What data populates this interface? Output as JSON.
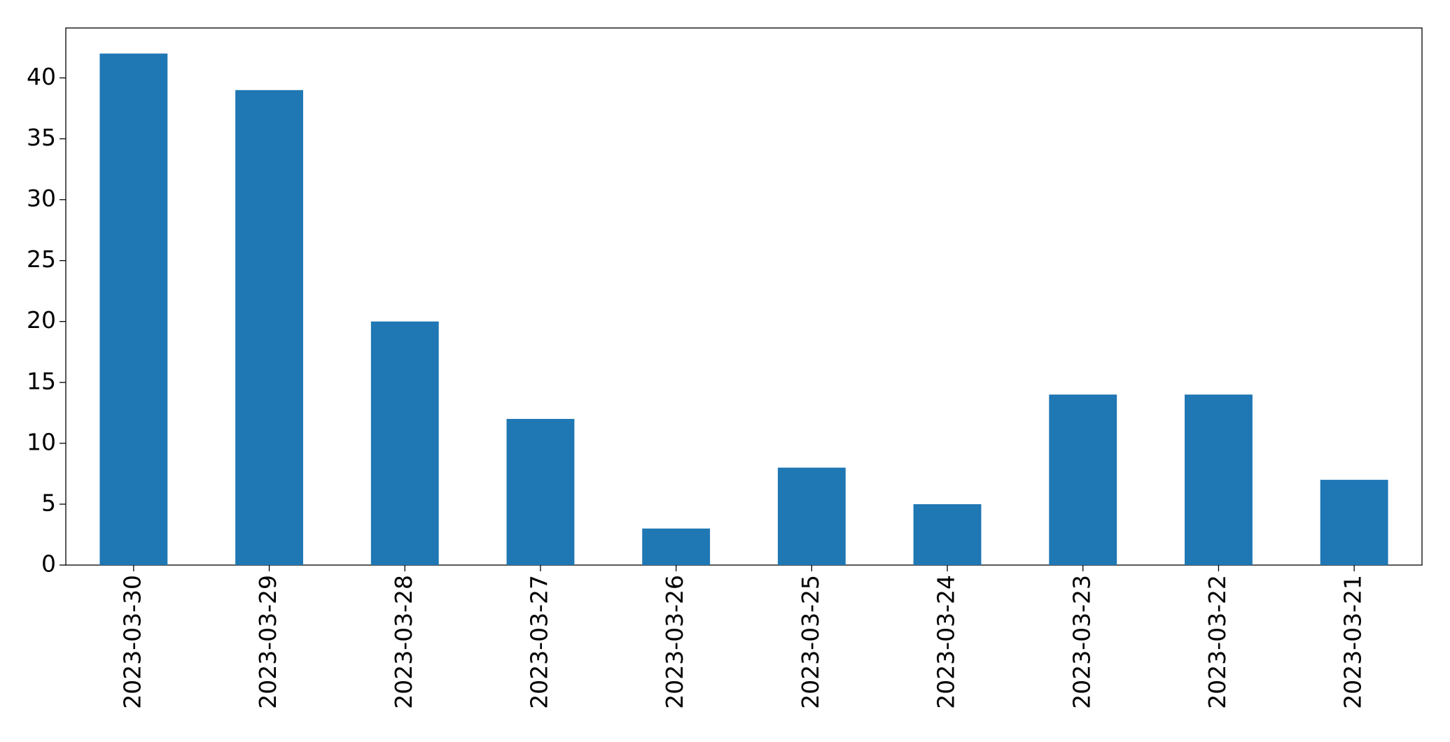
{
  "chart_data": {
    "type": "bar",
    "categories": [
      "2023-03-30",
      "2023-03-29",
      "2023-03-28",
      "2023-03-27",
      "2023-03-26",
      "2023-03-25",
      "2023-03-24",
      "2023-03-23",
      "2023-03-22",
      "2023-03-21"
    ],
    "values": [
      42,
      39,
      20,
      12,
      3,
      8,
      5,
      14,
      14,
      7
    ],
    "color": "#1f77b4",
    "ylim": [
      0,
      44.1
    ],
    "yticks": [
      0,
      5,
      10,
      15,
      20,
      25,
      30,
      35,
      40
    ],
    "grid": false
  }
}
